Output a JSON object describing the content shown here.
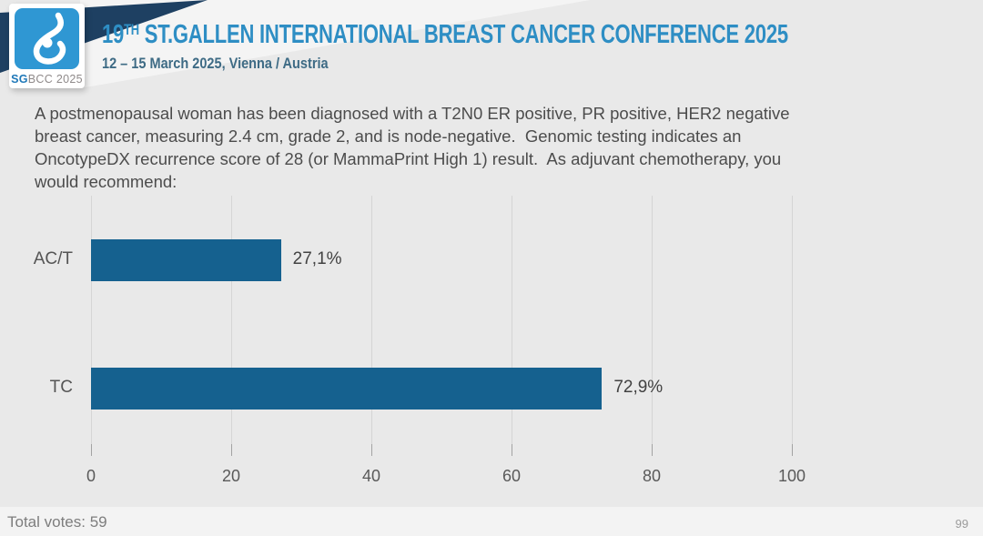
{
  "header": {
    "logo": {
      "caption_bold": "SG",
      "caption_rest": "BCC 2025",
      "square_color": "#2f97d3"
    },
    "title_prefix": "19",
    "title_superscript": "TH",
    "title_rest": " ST.GALLEN INTERNATIONAL BREAST CANCER CONFERENCE 2025",
    "subtitle": "12 – 15 March 2025, Vienna / Austria"
  },
  "question": {
    "lines": [
      "A postmenopausal woman has been diagnosed with a T2N0 ER positive, PR positive, HER2 negative",
      "breast cancer, measuring 2.4 cm, grade 2, and is node-negative.  Genomic testing indicates an",
      "OncotypeDX recurrence score of 28 (or MammaPrint High 1) result.  As adjuvant chemotherapy, you",
      "would recommend:"
    ]
  },
  "chart_data": {
    "type": "bar",
    "orientation": "horizontal",
    "title": "",
    "categories": [
      "AC/T",
      "TC"
    ],
    "values": [
      27.1,
      72.9
    ],
    "value_labels": [
      "27,1%",
      "72,9%"
    ],
    "xticks": [
      0,
      20,
      40,
      60,
      80,
      100
    ],
    "xlim": [
      0,
      100
    ],
    "bar_color": "#15618f",
    "grid": true,
    "legend": false
  },
  "footer": {
    "total_votes": "Total votes: 59",
    "page_number": "99"
  },
  "colors": {
    "background": "#e9e9e9",
    "title_blue": "#2e8ec4",
    "subtitle_blue": "#3e6b85",
    "navy_ribbon": "#1e4062",
    "bar_blue": "#15618f",
    "text_gray": "#4c4c4c"
  }
}
